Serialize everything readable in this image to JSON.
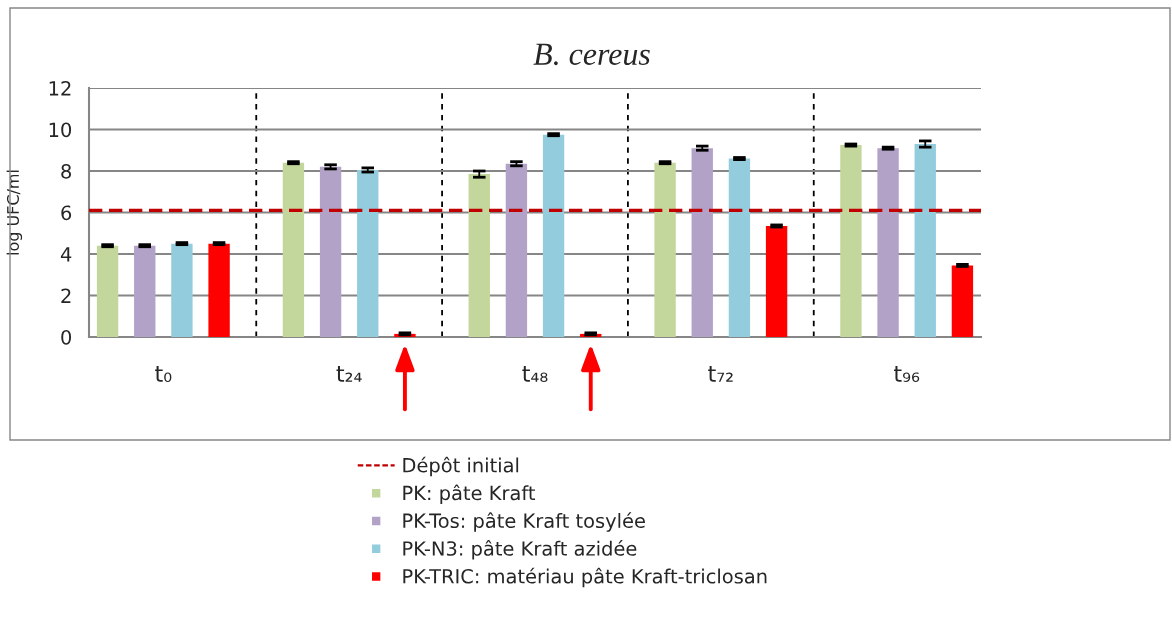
{
  "chart_data": {
    "type": "bar",
    "title": "B. cereus",
    "ylabel": "log UFC/ml",
    "categories": [
      "t₀",
      "t₂₄",
      "t₄₈",
      "t₇₂",
      "t₉₆"
    ],
    "series": [
      {
        "name": "PK: pâte Kraft",
        "color": "#c3d69b",
        "values": [
          4.4,
          8.4,
          7.85,
          8.4,
          9.25
        ],
        "errors": [
          0.05,
          0.05,
          0.15,
          0.05,
          0.05
        ]
      },
      {
        "name": "PK-Tos: pâte Kraft tosylée",
        "color": "#b3a2c7",
        "values": [
          4.4,
          8.2,
          8.35,
          9.1,
          9.1
        ],
        "errors": [
          0.05,
          0.1,
          0.1,
          0.1,
          0.05
        ]
      },
      {
        "name": "PK-N3: pâte Kraft azidée",
        "color": "#93cddd",
        "values": [
          4.5,
          8.05,
          9.75,
          8.6,
          9.3
        ],
        "errors": [
          0.05,
          0.1,
          0.05,
          0.05,
          0.15
        ]
      },
      {
        "name": "PK-TRIC: matériau pâte Kraft-triclosan",
        "color": "#ff0000",
        "values": [
          4.5,
          0.15,
          0.15,
          5.35,
          3.45
        ],
        "errors": [
          0.05,
          0.05,
          0.05,
          0.05,
          0.05
        ]
      }
    ],
    "ylim": [
      0,
      12
    ],
    "yticks": [
      0,
      2,
      4,
      6,
      8,
      10,
      12
    ],
    "grid": true,
    "legend": "bottom",
    "ref_lines": [
      {
        "axis": "y",
        "value": 6.1,
        "label": "Dépôt initial",
        "color": "#c00000",
        "line_style": "dashed"
      }
    ],
    "annotations": [
      {
        "x": "t₂₄"
      },
      {
        "x": "t₄₈"
      }
    ]
  }
}
